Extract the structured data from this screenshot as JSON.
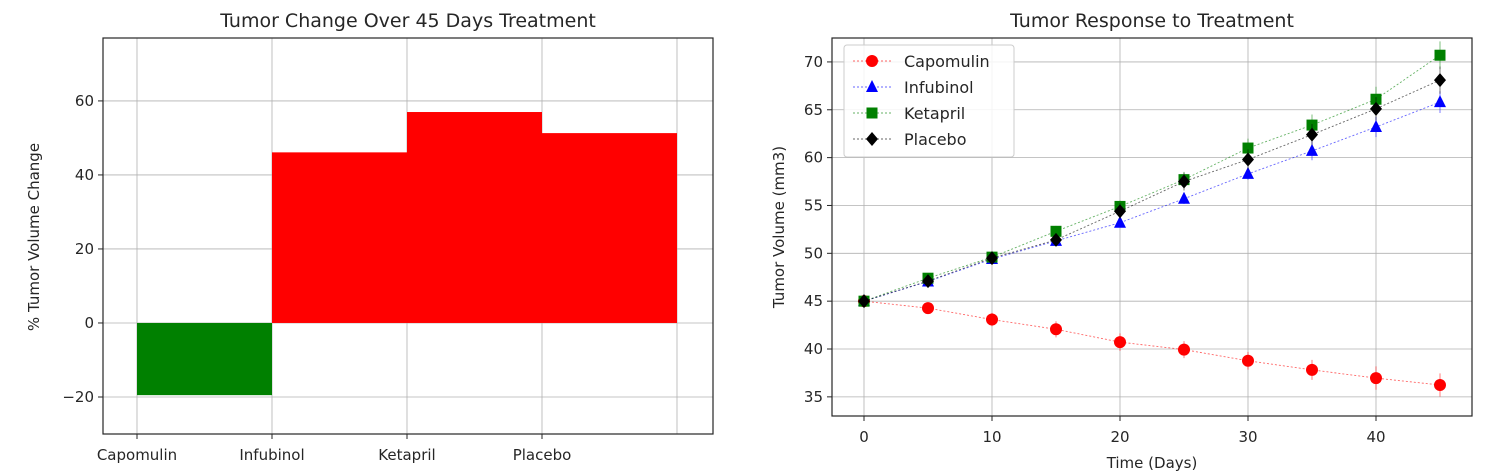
{
  "chart_data": [
    {
      "type": "bar",
      "title": "Tumor Change Over 45 Days Treatment",
      "xlabel": "",
      "ylabel": "% Tumor Volume Change",
      "categories": [
        "Capomulin",
        "Infubinol",
        "Ketapril",
        "Placebo"
      ],
      "values": [
        -19.5,
        46.1,
        57.0,
        51.3
      ],
      "colors": [
        "#008000",
        "#ff0000",
        "#ff0000",
        "#ff0000"
      ],
      "ylim": [
        -30,
        77
      ],
      "yticks": [
        -20,
        0,
        20,
        40,
        60
      ],
      "ytick_labels": [
        "−20",
        "0",
        "20",
        "40",
        "60"
      ],
      "grid": true
    },
    {
      "type": "line",
      "title": "Tumor Response to Treatment",
      "xlabel": "Time (Days)",
      "ylabel": "Tumor Volume (mm3)",
      "x": [
        0,
        5,
        10,
        15,
        20,
        25,
        30,
        35,
        40,
        45
      ],
      "xlim": [
        -2.5,
        47.5
      ],
      "xticks": [
        0,
        10,
        20,
        30,
        40
      ],
      "ylim": [
        33,
        72.5
      ],
      "yticks": [
        35,
        40,
        45,
        50,
        55,
        60,
        65,
        70
      ],
      "grid": true,
      "legend_position": "upper-left",
      "series": [
        {
          "name": "Capomulin",
          "color": "#ff0000",
          "marker": "circle",
          "values": [
            45.0,
            44.27,
            43.08,
            42.06,
            40.72,
            39.94,
            38.77,
            37.82,
            36.96,
            36.24
          ],
          "errors": [
            0,
            0.45,
            0.7,
            0.84,
            0.91,
            0.89,
            0.93,
            1.05,
            1.22,
            1.22
          ]
        },
        {
          "name": "Infubinol",
          "color": "#0000ff",
          "marker": "triangle",
          "values": [
            45.0,
            47.06,
            49.4,
            51.3,
            53.2,
            55.7,
            58.3,
            60.7,
            63.2,
            65.8
          ],
          "errors": [
            0,
            0.24,
            0.28,
            0.36,
            0.48,
            0.55,
            0.63,
            0.98,
            1.06,
            1.14
          ]
        },
        {
          "name": "Ketapril",
          "color": "#008000",
          "marker": "square",
          "values": [
            45.0,
            47.4,
            49.6,
            52.3,
            54.9,
            57.7,
            61.0,
            63.4,
            66.1,
            70.7
          ],
          "errors": [
            0,
            0.26,
            0.36,
            0.57,
            0.6,
            0.81,
            0.98,
            1.1,
            1.31,
            1.45
          ]
        },
        {
          "name": "Placebo",
          "color": "#000000",
          "marker": "diamond",
          "values": [
            45.0,
            47.1,
            49.5,
            51.4,
            54.4,
            57.5,
            59.8,
            62.4,
            65.1,
            68.1
          ],
          "errors": [
            0,
            0.22,
            0.4,
            0.61,
            0.84,
            0.93,
            1.05,
            1.11,
            1.22,
            1.42
          ]
        }
      ]
    }
  ]
}
